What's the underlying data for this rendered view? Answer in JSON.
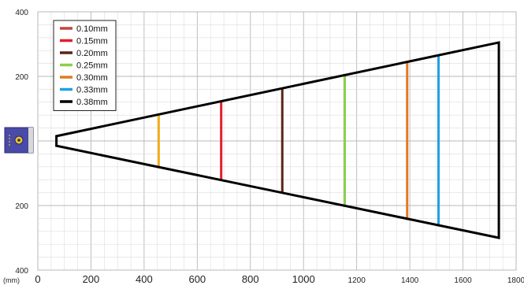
{
  "chart_data": {
    "type": "line",
    "title": "",
    "xlabel": "",
    "ylabel": "",
    "unit_label": "(mm)",
    "xlim": [
      0,
      1800
    ],
    "ylim": [
      -400,
      400
    ],
    "grid": true,
    "legend_placement": "top-left",
    "x_ticks": [
      {
        "value": 0,
        "label": "0"
      },
      {
        "value": 200,
        "label": "200"
      },
      {
        "value": 400,
        "label": "400"
      },
      {
        "value": 600,
        "label": "600"
      },
      {
        "value": 800,
        "label": "800"
      },
      {
        "value": 1000,
        "label": "1000"
      },
      {
        "value": 1200,
        "label": "1200"
      },
      {
        "value": 1400,
        "label": "1400"
      },
      {
        "value": 1600,
        "label": "1600"
      },
      {
        "value": 1800,
        "label": "1800"
      }
    ],
    "y_ticks": [
      {
        "value": 400,
        "label": "400"
      },
      {
        "value": 200,
        "label": "200"
      },
      {
        "value": -200,
        "label": "200"
      },
      {
        "value": -400,
        "label": "400"
      }
    ],
    "envelope": {
      "name": "0.38mm",
      "color": "#000000",
      "points": [
        [
          70,
          15
        ],
        [
          1735,
          305
        ],
        [
          1735,
          -300
        ],
        [
          70,
          -15
        ]
      ]
    },
    "series": [
      {
        "name": "0.10mm",
        "color": "#c8443c",
        "x": null,
        "ymin": null,
        "ymax": null
      },
      {
        "name": "0.15mm",
        "color": "#e0202a",
        "x": 690,
        "ymin": -120,
        "ymax": 122
      },
      {
        "name": "0.20mm",
        "color": "#5a2418",
        "x": 920,
        "ymin": -162,
        "ymax": 162
      },
      {
        "name": "0.25mm",
        "color": "#8ccf4d",
        "x": 1155,
        "ymin": -202,
        "ymax": 202
      },
      {
        "name": "0.30mm",
        "color": "#e07a20",
        "x": 1390,
        "ymin": -245,
        "ymax": 245
      },
      {
        "name": "0.33mm",
        "color": "#20a0e0",
        "x": 1508,
        "ymin": -265,
        "ymax": 265
      },
      {
        "name": "0.38mm",
        "color": "#000000",
        "x": null,
        "ymin": null,
        "ymax": null
      }
    ],
    "extra_marks": [
      {
        "color": "#f0b020",
        "x": 455,
        "ymin": -78,
        "ymax": 80
      }
    ]
  }
}
